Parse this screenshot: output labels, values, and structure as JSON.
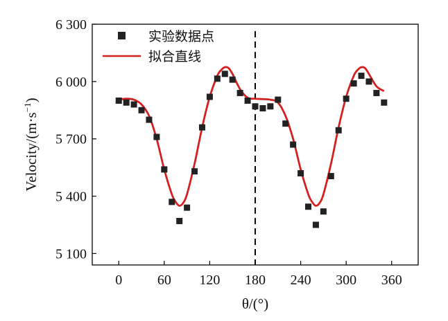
{
  "chart_data": {
    "type": "scatter",
    "xlabel": "θ/(°)",
    "ylabel": "Velocity/(m·s",
    "ylabel_unit_exponent": "−1",
    "ylabel_suffix": ")",
    "xlim": [
      -35,
      395
    ],
    "ylim": [
      5040,
      6300
    ],
    "xticks": [
      0,
      60,
      120,
      180,
      240,
      300,
      360
    ],
    "yticks": [
      5100,
      5400,
      5700,
      6000,
      6300
    ],
    "ytick_labels": [
      "5 100",
      "5 400",
      "5 700",
      "6 000",
      "6 300"
    ],
    "vertical_reference_line": 180,
    "legend": {
      "placement": "top-left",
      "points_label": "实验数据点",
      "line_label": "拟合直线"
    },
    "colors": {
      "points": "#222222",
      "line": "#d42020",
      "axes": "#000000"
    },
    "series": [
      {
        "name": "实验数据点",
        "kind": "points",
        "x": [
          0,
          10,
          20,
          30,
          40,
          50,
          60,
          70,
          80,
          90,
          100,
          110,
          120,
          130,
          140,
          150,
          160,
          170,
          180,
          190,
          200,
          210,
          220,
          230,
          240,
          250,
          260,
          270,
          280,
          290,
          300,
          310,
          320,
          330,
          340,
          350
        ],
        "y": [
          5900,
          5890,
          5880,
          5850,
          5800,
          5710,
          5540,
          5370,
          5270,
          5340,
          5530,
          5760,
          5920,
          6015,
          6040,
          6010,
          5940,
          5900,
          5870,
          5860,
          5870,
          5905,
          5780,
          5670,
          5520,
          5345,
          5250,
          5320,
          5505,
          5745,
          5910,
          5990,
          6030,
          6000,
          5940,
          5890
        ]
      },
      {
        "name": "拟合直线",
        "kind": "line",
        "x": [
          0,
          10,
          20,
          30,
          40,
          50,
          60,
          70,
          75,
          80,
          85,
          90,
          100,
          110,
          120,
          130,
          135,
          140,
          145,
          150,
          160,
          170,
          180,
          190,
          200,
          210,
          220,
          230,
          240,
          250,
          255,
          260,
          265,
          270,
          280,
          290,
          300,
          310,
          315,
          320,
          325,
          330,
          340,
          350
        ],
        "y": [
          5905,
          5910,
          5905,
          5880,
          5820,
          5700,
          5540,
          5410,
          5370,
          5350,
          5365,
          5410,
          5570,
          5760,
          5920,
          6030,
          6060,
          6075,
          6070,
          6040,
          5960,
          5915,
          5910,
          5908,
          5905,
          5890,
          5820,
          5700,
          5540,
          5410,
          5370,
          5350,
          5365,
          5410,
          5570,
          5760,
          5920,
          6030,
          6060,
          6075,
          6070,
          6040,
          5975,
          5950
        ]
      }
    ]
  }
}
